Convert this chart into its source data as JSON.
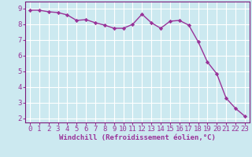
{
  "x": [
    0,
    1,
    2,
    3,
    4,
    5,
    6,
    7,
    8,
    9,
    10,
    11,
    12,
    13,
    14,
    15,
    16,
    17,
    18,
    19,
    20,
    21,
    22,
    23
  ],
  "y": [
    8.9,
    8.9,
    8.8,
    8.75,
    8.6,
    8.25,
    8.3,
    8.1,
    7.95,
    7.75,
    7.75,
    8.0,
    8.65,
    8.1,
    7.75,
    8.2,
    8.25,
    7.95,
    6.9,
    5.6,
    4.85,
    3.3,
    2.65,
    2.15
  ],
  "line_color": "#993399",
  "marker": "D",
  "marker_size": 2.2,
  "bg_color": "#cce9f0",
  "grid_color": "#ffffff",
  "xlabel": "Windchill (Refroidissement éolien,°C)",
  "xlim": [
    -0.5,
    23.5
  ],
  "ylim": [
    1.75,
    9.45
  ],
  "yticks": [
    2,
    3,
    4,
    5,
    6,
    7,
    8,
    9
  ],
  "xticks": [
    0,
    1,
    2,
    3,
    4,
    5,
    6,
    7,
    8,
    9,
    10,
    11,
    12,
    13,
    14,
    15,
    16,
    17,
    18,
    19,
    20,
    21,
    22,
    23
  ],
  "tick_color": "#993399",
  "label_color": "#993399",
  "spine_color": "#7a1a7a",
  "font_size_xlabel": 6.5,
  "font_size_ticks": 6.5,
  "linewidth": 1.0
}
